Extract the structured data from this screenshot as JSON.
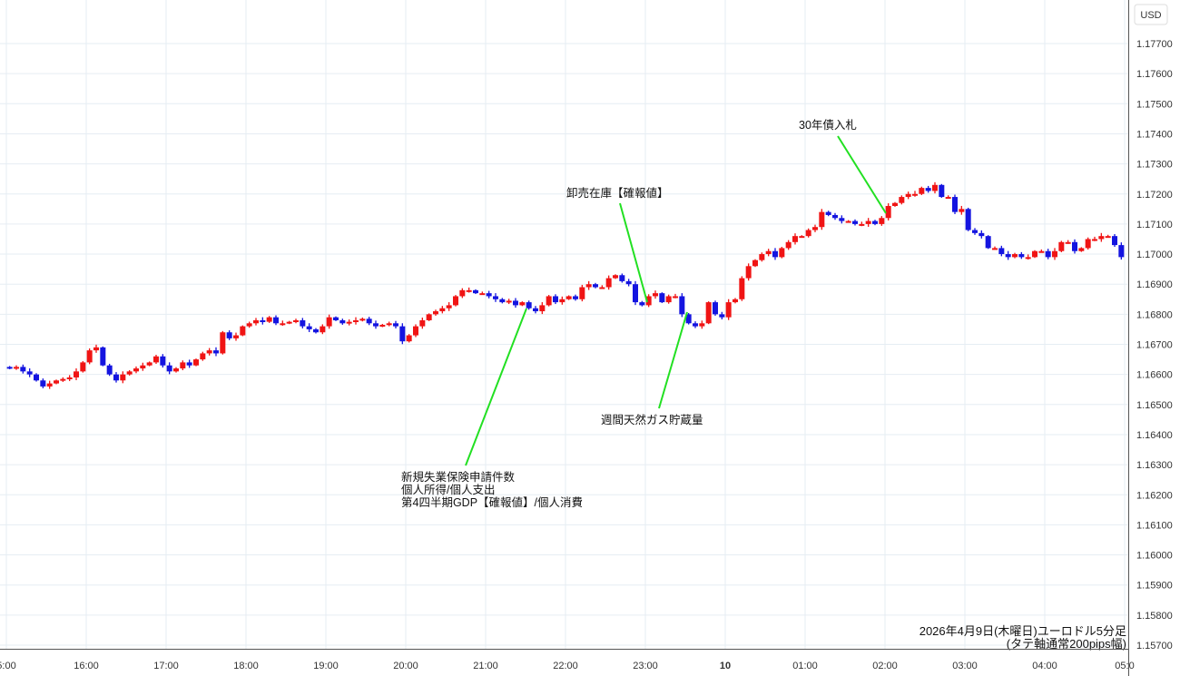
{
  "chart_data": {
    "type": "candlestick",
    "title": "2026年4月9日(木曜日)ユーロドル5分足",
    "subtitle": "(タテ軸通常200pips幅)",
    "currency_label": "USD",
    "interval_minutes": 5,
    "ylim": [
      1.1567,
      1.1781
    ],
    "y_ticks": [
      "1.17700",
      "1.17600",
      "1.17500",
      "1.17400",
      "1.17300",
      "1.17200",
      "1.17100",
      "1.17000",
      "1.16900",
      "1.16800",
      "1.16700",
      "1.16600",
      "1.16500",
      "1.16400",
      "1.16300",
      "1.16200",
      "1.16100",
      "1.16000",
      "1.15900",
      "1.15800",
      "1.15700"
    ],
    "x_ticks": [
      "5:00",
      "16:00",
      "17:00",
      "18:00",
      "19:00",
      "20:00",
      "21:00",
      "22:00",
      "23:00",
      "10",
      "01:00",
      "02:00",
      "03:00",
      "04:00",
      "05:0"
    ],
    "grid": true,
    "colors": {
      "up": "#f01414",
      "down": "#1414e0",
      "annotation_line": "#22e022",
      "grid": "#e6edf3"
    },
    "start_time": "15:00",
    "closes": [
      1.1662,
      1.16625,
      1.1661,
      1.166,
      1.1658,
      1.1656,
      1.1657,
      1.1658,
      1.16585,
      1.1659,
      1.1661,
      1.1664,
      1.1668,
      1.1669,
      1.1663,
      1.166,
      1.1658,
      1.166,
      1.1661,
      1.1662,
      1.1663,
      1.1664,
      1.1666,
      1.1663,
      1.1661,
      1.1662,
      1.1664,
      1.1663,
      1.1665,
      1.1667,
      1.1668,
      1.1667,
      1.1674,
      1.1672,
      1.1673,
      1.1676,
      1.1677,
      1.1678,
      1.16775,
      1.1679,
      1.1677,
      1.1677,
      1.16775,
      1.1678,
      1.1676,
      1.1675,
      1.1674,
      1.1676,
      1.1679,
      1.1678,
      1.1677,
      1.16775,
      1.1678,
      1.16785,
      1.1677,
      1.1676,
      1.16765,
      1.1677,
      1.1676,
      1.1671,
      1.1673,
      1.1676,
      1.1678,
      1.168,
      1.1681,
      1.1682,
      1.1683,
      1.1686,
      1.1688,
      1.1688,
      1.1687,
      1.1687,
      1.1686,
      1.1685,
      1.1684,
      1.16845,
      1.1683,
      1.1684,
      1.1682,
      1.1681,
      1.1683,
      1.1686,
      1.1684,
      1.1685,
      1.1686,
      1.1685,
      1.1689,
      1.169,
      1.1689,
      1.1689,
      1.1692,
      1.1693,
      1.1691,
      1.169,
      1.1684,
      1.1683,
      1.1686,
      1.1687,
      1.1684,
      1.1686,
      1.1686,
      1.168,
      1.1677,
      1.1676,
      1.1677,
      1.1684,
      1.168,
      1.1679,
      1.1684,
      1.1685,
      1.1692,
      1.1696,
      1.1698,
      1.17,
      1.1701,
      1.1699,
      1.1702,
      1.1704,
      1.1706,
      1.1706,
      1.1708,
      1.1709,
      1.1714,
      1.1713,
      1.1712,
      1.1711,
      1.1711,
      1.171,
      1.171,
      1.1711,
      1.171,
      1.1712,
      1.1716,
      1.1717,
      1.1719,
      1.172,
      1.172,
      1.1722,
      1.1721,
      1.1723,
      1.1719,
      1.1719,
      1.1714,
      1.1715,
      1.1708,
      1.1707,
      1.1706,
      1.1702,
      1.1702,
      1.17,
      1.1699,
      1.17,
      1.1699,
      1.1699,
      1.1701,
      1.1701,
      1.1699,
      1.1701,
      1.1704,
      1.1704,
      1.1701,
      1.1702,
      1.1705,
      1.1705,
      1.1706,
      1.1706,
      1.1703,
      1.1699
    ],
    "annotations": [
      {
        "lines": [
          "新規失業保険申請件数",
          "個人所得/個人支出",
          "第4四半期GDP【確報値】/個人消費"
        ],
        "time": "21:30"
      },
      {
        "lines": [
          "卸売在庫【確報値】"
        ],
        "time": "23:00"
      },
      {
        "lines": [
          "週間天然ガス貯蔵量"
        ],
        "time": "23:30"
      },
      {
        "lines": [
          "30年債入札"
        ],
        "time": "02:00"
      }
    ]
  }
}
